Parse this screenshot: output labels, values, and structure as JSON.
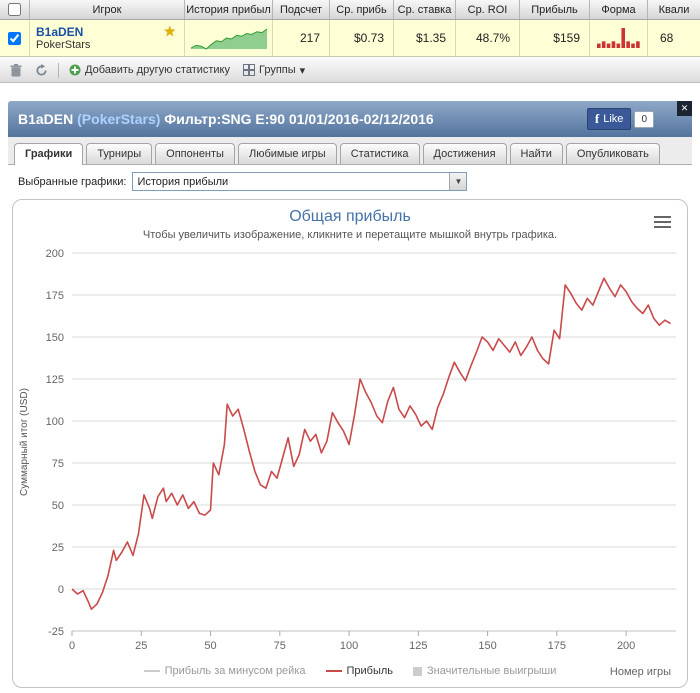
{
  "table": {
    "headers": [
      "Игрок",
      "История прибыл",
      "Подсчет",
      "Ср. прибь",
      "Ср. ставка",
      "Ср. ROI",
      "Прибыль",
      "Форма",
      "Квали"
    ],
    "row": {
      "checked": "checked",
      "player": "B1aDEN",
      "site": "PokerStars",
      "count": "217",
      "avg_profit": "$0.73",
      "avg_stake": "$1.35",
      "avg_roi": "48.7%",
      "profit": "$159",
      "quali": "68",
      "sparkline": {
        "stroke": "#2e9b2e",
        "fill": "#90ce90",
        "values": [
          0,
          3,
          2,
          -1,
          4,
          8,
          7,
          11,
          10,
          14,
          13,
          16,
          15,
          18,
          17,
          21
        ]
      },
      "form": {
        "color": "#cc3333",
        "bars": [
          2,
          3,
          2,
          3,
          2,
          9,
          3,
          2,
          3
        ]
      }
    },
    "trophy_icon": "★"
  },
  "toolbar": {
    "add_label": "Добавить другую статистику",
    "groups_label": "Группы",
    "caret": "▾"
  },
  "panel": {
    "player": "B1aDEN",
    "site": "(PokerStars)",
    "filter": "Фильтр:SNG E:90 01/01/2016-02/12/2016",
    "like_label": "Like",
    "like_count": "0",
    "close_label": "✕"
  },
  "tabs": [
    {
      "label": "Графики",
      "active": true
    },
    {
      "label": "Турниры"
    },
    {
      "label": "Оппоненты"
    },
    {
      "label": "Любимые игры"
    },
    {
      "label": "Статистика"
    },
    {
      "label": "Достижения"
    },
    {
      "label": "Найти"
    },
    {
      "label": "Опубликовать"
    }
  ],
  "selector": {
    "label": "Выбранные графики:",
    "value": "История прибыли",
    "arrow": "▼"
  },
  "chart_data": {
    "type": "line",
    "title": "Общая прибыль",
    "subtitle": "Чтобы увеличить изображение, кликните и перетащите мышкой внутрь графика.",
    "xlabel": "Номер игры",
    "ylabel": "Суммарный итог (USD)",
    "xlim": [
      0,
      218
    ],
    "ylim": [
      -25,
      200
    ],
    "xticks": [
      0,
      25,
      50,
      75,
      100,
      125,
      150,
      175,
      200
    ],
    "yticks": [
      -25,
      0,
      25,
      50,
      75,
      100,
      125,
      150,
      175,
      200
    ],
    "grid": true,
    "legend_position": "bottom",
    "series": [
      {
        "name": "Прибыль за минусом рейка",
        "color": "#cccccc",
        "marker": "line",
        "visible": false,
        "points": []
      },
      {
        "name": "Прибыль",
        "color": "#c94a4a",
        "marker": "line",
        "visible": true,
        "points": [
          [
            0,
            0
          ],
          [
            2,
            -3
          ],
          [
            4,
            -1
          ],
          [
            6,
            -8
          ],
          [
            7,
            -12
          ],
          [
            9,
            -9
          ],
          [
            11,
            -2
          ],
          [
            13,
            8
          ],
          [
            15,
            23
          ],
          [
            16,
            17
          ],
          [
            18,
            22
          ],
          [
            20,
            28
          ],
          [
            22,
            20
          ],
          [
            24,
            33
          ],
          [
            26,
            56
          ],
          [
            28,
            48
          ],
          [
            29,
            42
          ],
          [
            31,
            55
          ],
          [
            33,
            60
          ],
          [
            34,
            52
          ],
          [
            36,
            57
          ],
          [
            38,
            50
          ],
          [
            40,
            56
          ],
          [
            42,
            48
          ],
          [
            44,
            52
          ],
          [
            46,
            45
          ],
          [
            48,
            44
          ],
          [
            50,
            47
          ],
          [
            51,
            75
          ],
          [
            53,
            68
          ],
          [
            55,
            86
          ],
          [
            56,
            110
          ],
          [
            58,
            103
          ],
          [
            60,
            107
          ],
          [
            62,
            95
          ],
          [
            64,
            82
          ],
          [
            66,
            70
          ],
          [
            68,
            62
          ],
          [
            70,
            60
          ],
          [
            72,
            70
          ],
          [
            74,
            66
          ],
          [
            76,
            78
          ],
          [
            78,
            90
          ],
          [
            80,
            73
          ],
          [
            82,
            80
          ],
          [
            84,
            95
          ],
          [
            86,
            88
          ],
          [
            88,
            92
          ],
          [
            90,
            81
          ],
          [
            92,
            88
          ],
          [
            94,
            105
          ],
          [
            96,
            99
          ],
          [
            98,
            94
          ],
          [
            100,
            86
          ],
          [
            102,
            104
          ],
          [
            104,
            125
          ],
          [
            106,
            117
          ],
          [
            108,
            111
          ],
          [
            110,
            103
          ],
          [
            112,
            99
          ],
          [
            114,
            112
          ],
          [
            116,
            120
          ],
          [
            118,
            107
          ],
          [
            120,
            102
          ],
          [
            122,
            109
          ],
          [
            124,
            104
          ],
          [
            126,
            97
          ],
          [
            128,
            100
          ],
          [
            130,
            95
          ],
          [
            132,
            108
          ],
          [
            134,
            116
          ],
          [
            136,
            126
          ],
          [
            138,
            135
          ],
          [
            140,
            129
          ],
          [
            142,
            124
          ],
          [
            144,
            133
          ],
          [
            146,
            141
          ],
          [
            148,
            150
          ],
          [
            150,
            147
          ],
          [
            152,
            142
          ],
          [
            154,
            149
          ],
          [
            156,
            145
          ],
          [
            158,
            141
          ],
          [
            160,
            147
          ],
          [
            162,
            139
          ],
          [
            164,
            144
          ],
          [
            166,
            150
          ],
          [
            168,
            142
          ],
          [
            170,
            137
          ],
          [
            172,
            134
          ],
          [
            174,
            154
          ],
          [
            176,
            149
          ],
          [
            178,
            181
          ],
          [
            180,
            176
          ],
          [
            182,
            170
          ],
          [
            184,
            166
          ],
          [
            186,
            173
          ],
          [
            188,
            169
          ],
          [
            190,
            177
          ],
          [
            192,
            185
          ],
          [
            194,
            179
          ],
          [
            196,
            174
          ],
          [
            198,
            181
          ],
          [
            200,
            177
          ],
          [
            202,
            171
          ],
          [
            204,
            167
          ],
          [
            206,
            164
          ],
          [
            208,
            169
          ],
          [
            210,
            161
          ],
          [
            212,
            157
          ],
          [
            214,
            160
          ],
          [
            216,
            158
          ]
        ]
      },
      {
        "name": "Значительные выигрыши",
        "color": "#cccccc",
        "marker": "square",
        "visible": false,
        "points": []
      }
    ]
  }
}
